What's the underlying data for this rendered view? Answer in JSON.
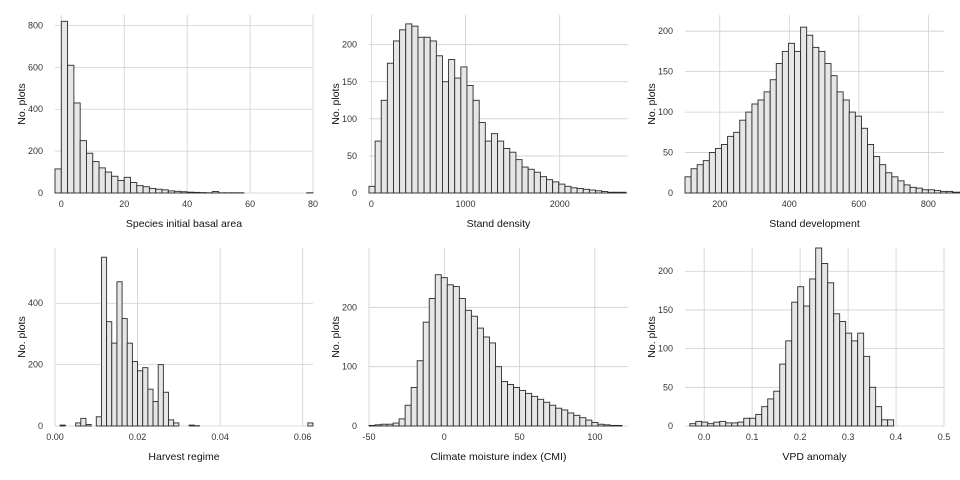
{
  "chart_data": [
    {
      "type": "bar",
      "xlabel": "Species initial basal area",
      "ylabel": "No. plots",
      "xlim": [
        -2,
        80
      ],
      "ylim": [
        0,
        850
      ],
      "xticks": [
        0,
        20,
        40,
        60,
        80
      ],
      "yticks": [
        0,
        200,
        400,
        600,
        800
      ],
      "xtick_labels": [
        "0",
        "20",
        "40",
        "60",
        "80"
      ],
      "ytick_labels": [
        "0",
        "200",
        "400",
        "600",
        "800"
      ],
      "grid": true,
      "bin_start": -2,
      "bin_width": 2,
      "values": [
        115,
        820,
        610,
        430,
        250,
        190,
        150,
        120,
        100,
        80,
        60,
        75,
        50,
        35,
        30,
        22,
        18,
        15,
        10,
        8,
        6,
        4,
        3,
        2,
        1,
        7,
        1,
        1,
        1,
        1,
        0,
        0,
        0,
        0,
        0,
        0,
        0,
        0,
        0,
        0,
        1
      ]
    },
    {
      "type": "bar",
      "xlabel": "Stand density",
      "ylabel": "No. plots",
      "xlim": [
        -25,
        2725
      ],
      "ylim": [
        0,
        240
      ],
      "xticks": [
        0,
        1000,
        2000
      ],
      "yticks": [
        0,
        50,
        100,
        150,
        200
      ],
      "xtick_labels": [
        "0",
        "1000",
        "2000"
      ],
      "ytick_labels": [
        "0",
        "50",
        "100",
        "150",
        "200"
      ],
      "grid": true,
      "bin_start": -25,
      "bin_width": 65,
      "values": [
        9,
        70,
        125,
        175,
        205,
        220,
        228,
        225,
        210,
        210,
        205,
        185,
        150,
        180,
        155,
        170,
        145,
        125,
        95,
        70,
        80,
        70,
        60,
        55,
        45,
        35,
        32,
        28,
        22,
        18,
        15,
        12,
        9,
        7,
        6,
        5,
        4,
        3,
        2,
        1,
        1,
        1
      ]
    },
    {
      "type": "bar",
      "xlabel": "Stand development",
      "ylabel": "No. plots",
      "xlim": [
        100,
        845
      ],
      "ylim": [
        0,
        220
      ],
      "xticks": [
        200,
        400,
        600,
        800
      ],
      "yticks": [
        0,
        50,
        100,
        150,
        200
      ],
      "xtick_labels": [
        "200",
        "400",
        "600",
        "800"
      ],
      "ytick_labels": [
        "0",
        "50",
        "100",
        "150",
        "200"
      ],
      "grid": true,
      "bin_start": 100,
      "bin_width": 17.5,
      "values": [
        20,
        30,
        35,
        40,
        50,
        55,
        60,
        70,
        75,
        90,
        100,
        110,
        115,
        125,
        140,
        160,
        175,
        185,
        175,
        205,
        195,
        180,
        175,
        160,
        145,
        125,
        115,
        100,
        95,
        80,
        60,
        45,
        35,
        25,
        20,
        15,
        10,
        7,
        6,
        4,
        4,
        3,
        2,
        2,
        1,
        1,
        1,
        1
      ]
    },
    {
      "type": "bar",
      "xlabel": "Harvest regime",
      "ylabel": "No. plots",
      "xlim": [
        0,
        0.0625
      ],
      "ylim": [
        0,
        580
      ],
      "xticks": [
        0.0,
        0.02,
        0.04,
        0.06
      ],
      "yticks": [
        0,
        200,
        400
      ],
      "xtick_labels": [
        "0.00",
        "0.02",
        "0.04",
        "0.06"
      ],
      "ytick_labels": [
        "0",
        "200",
        "400"
      ],
      "grid": true,
      "bin_start": 0,
      "bin_width": 0.00125,
      "values": [
        0,
        3,
        0,
        0,
        10,
        25,
        5,
        0,
        30,
        550,
        340,
        270,
        470,
        350,
        270,
        210,
        180,
        190,
        120,
        80,
        200,
        110,
        20,
        10,
        0,
        0,
        3,
        1,
        0,
        0,
        0,
        0,
        0,
        0,
        0,
        0,
        0,
        0,
        0,
        0,
        0,
        0,
        0,
        0,
        0,
        0,
        0,
        0,
        0,
        10
      ]
    },
    {
      "type": "bar",
      "xlabel": "Climate moisture index (CMI)",
      "ylabel": "No. plots",
      "xlim": [
        -50,
        122
      ],
      "ylim": [
        0,
        300
      ],
      "xticks": [
        -50,
        0,
        50,
        100
      ],
      "yticks": [
        0,
        100,
        200
      ],
      "xtick_labels": [
        "-50",
        "0",
        "50",
        "100"
      ],
      "ytick_labels": [
        "0",
        "100",
        "200"
      ],
      "grid": true,
      "bin_start": -50,
      "bin_width": 4,
      "values": [
        1,
        2,
        3,
        3,
        5,
        12,
        35,
        65,
        110,
        175,
        215,
        255,
        250,
        238,
        235,
        215,
        195,
        185,
        165,
        150,
        140,
        100,
        75,
        70,
        65,
        60,
        55,
        50,
        45,
        40,
        35,
        30,
        27,
        22,
        18,
        14,
        10,
        6,
        3,
        2,
        1,
        1
      ]
    },
    {
      "type": "bar",
      "xlabel": "VPD anomaly",
      "ylabel": "No. plots",
      "xlim": [
        -0.04,
        0.5
      ],
      "ylim": [
        0,
        230
      ],
      "xticks": [
        0.0,
        0.1,
        0.2,
        0.3,
        0.4,
        0.5
      ],
      "yticks": [
        0,
        50,
        100,
        150,
        200
      ],
      "xtick_labels": [
        "0.0",
        "0.1",
        "0.2",
        "0.3",
        "0.4",
        "0.5"
      ],
      "ytick_labels": [
        "0",
        "50",
        "100",
        "150",
        "200"
      ],
      "grid": true,
      "bin_start": -0.03,
      "bin_width": 0.0125,
      "values": [
        3,
        6,
        5,
        3,
        5,
        6,
        4,
        4,
        5,
        10,
        10,
        15,
        25,
        35,
        45,
        80,
        110,
        160,
        180,
        155,
        190,
        230,
        210,
        185,
        145,
        135,
        120,
        110,
        120,
        90,
        50,
        25,
        8,
        8
      ]
    }
  ]
}
